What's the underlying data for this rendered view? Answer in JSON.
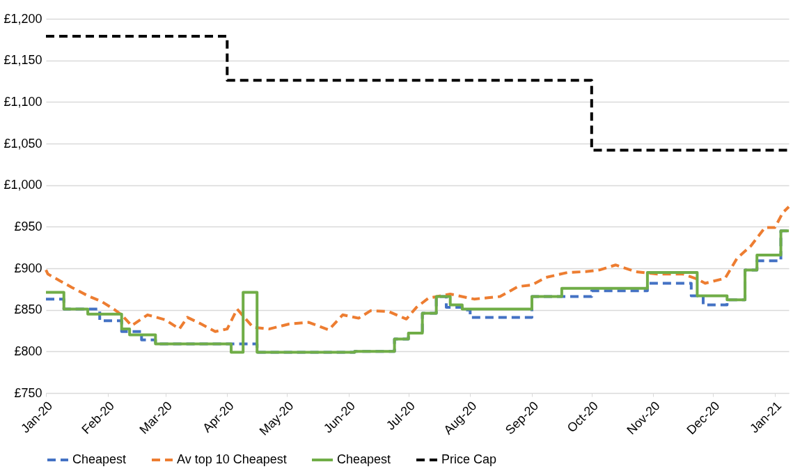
{
  "chart_data": {
    "type": "line",
    "xlim": [
      "2020-01-01",
      "2021-01-08"
    ],
    "xticks": [
      {
        "value": "2020-01-01",
        "label": "Jan-20"
      },
      {
        "value": "2020-02-01",
        "label": "Feb-20"
      },
      {
        "value": "2020-03-01",
        "label": "Mar-20"
      },
      {
        "value": "2020-04-01",
        "label": "Apr-20"
      },
      {
        "value": "2020-05-01",
        "label": "May-20"
      },
      {
        "value": "2020-06-01",
        "label": "Jun-20"
      },
      {
        "value": "2020-07-01",
        "label": "Jul-20"
      },
      {
        "value": "2020-08-01",
        "label": "Aug-20"
      },
      {
        "value": "2020-09-01",
        "label": "Sep-20"
      },
      {
        "value": "2020-10-01",
        "label": "Oct-20"
      },
      {
        "value": "2020-11-01",
        "label": "Nov-20"
      },
      {
        "value": "2020-12-01",
        "label": "Dec-20"
      },
      {
        "value": "2021-01-01",
        "label": "Jan-21"
      }
    ],
    "ylim": [
      750,
      1200
    ],
    "yticks": [
      {
        "value": 750,
        "label": "£750"
      },
      {
        "value": 800,
        "label": "£800"
      },
      {
        "value": 850,
        "label": "£850"
      },
      {
        "value": 900,
        "label": "£900"
      },
      {
        "value": 950,
        "label": "£950"
      },
      {
        "value": 1000,
        "label": "£1,000"
      },
      {
        "value": 1050,
        "label": "£1,050"
      },
      {
        "value": 1100,
        "label": "£1,100"
      },
      {
        "value": 1150,
        "label": "£1,150"
      },
      {
        "value": 1200,
        "label": "£1,200"
      }
    ],
    "grid": "y",
    "legend": "bottom",
    "series": [
      {
        "name": "Cheapest",
        "type": "step",
        "color": "#4472c4",
        "line_style": "dashed",
        "x": [
          "2020-01-01",
          "2020-01-10",
          "2020-01-28",
          "2020-02-08",
          "2020-02-18",
          "2020-02-25",
          "2020-04-16",
          "2020-06-04",
          "2020-06-24",
          "2020-07-01",
          "2020-07-08",
          "2020-07-15",
          "2020-07-20",
          "2020-07-28",
          "2020-08-01",
          "2020-09-01",
          "2020-10-01",
          "2020-10-29",
          "2020-11-20",
          "2020-11-26",
          "2020-12-08",
          "2020-12-17",
          "2020-12-23",
          "2021-01-04",
          "2021-01-08"
        ],
        "values": [
          863,
          851,
          837,
          824,
          814,
          809,
          799,
          800,
          815,
          822,
          846,
          866,
          853,
          850,
          841,
          866,
          873,
          882,
          867,
          856,
          862,
          898,
          909,
          945,
          945
        ]
      },
      {
        "name": "Av top 10 Cheapest",
        "type": "line",
        "color": "#ed7d31",
        "line_style": "dashed",
        "x": [
          "2020-01-01",
          "2020-01-02",
          "2020-01-08",
          "2020-01-14",
          "2020-01-22",
          "2020-01-29",
          "2020-02-04",
          "2020-02-08",
          "2020-02-13",
          "2020-02-21",
          "2020-03-01",
          "2020-03-08",
          "2020-03-12",
          "2020-03-19",
          "2020-03-26",
          "2020-04-01",
          "2020-04-06",
          "2020-04-14",
          "2020-04-22",
          "2020-05-02",
          "2020-05-12",
          "2020-05-22",
          "2020-05-29",
          "2020-06-06",
          "2020-06-12",
          "2020-06-21",
          "2020-06-30",
          "2020-07-05",
          "2020-07-11",
          "2020-07-22",
          "2020-08-03",
          "2020-08-16",
          "2020-08-25",
          "2020-09-01",
          "2020-09-08",
          "2020-09-19",
          "2020-09-28",
          "2020-10-05",
          "2020-10-13",
          "2020-10-23",
          "2020-11-03",
          "2020-11-16",
          "2020-11-23",
          "2020-11-27",
          "2020-12-07",
          "2020-12-13",
          "2020-12-20",
          "2020-12-27",
          "2021-01-01",
          "2021-01-05",
          "2021-01-08"
        ],
        "values": [
          898,
          893,
          885,
          877,
          867,
          860,
          851,
          844,
          831,
          844,
          838,
          827,
          841,
          833,
          824,
          827,
          851,
          829,
          827,
          833,
          835,
          826,
          844,
          840,
          849,
          848,
          839,
          853,
          864,
          869,
          863,
          866,
          878,
          880,
          889,
          895,
          896,
          898,
          904,
          896,
          893,
          893,
          887,
          882,
          888,
          912,
          927,
          949,
          949,
          967,
          974
        ]
      },
      {
        "name": "Cheapest",
        "type": "step",
        "color": "#70ad47",
        "line_style": "solid",
        "x": [
          "2020-01-01",
          "2020-01-10",
          "2020-01-22",
          "2020-02-08",
          "2020-02-12",
          "2020-02-25",
          "2020-04-03",
          "2020-04-09",
          "2020-04-16",
          "2020-06-04",
          "2020-06-24",
          "2020-07-01",
          "2020-07-08",
          "2020-07-15",
          "2020-07-22",
          "2020-07-28",
          "2020-09-01",
          "2020-09-16",
          "2020-10-29",
          "2020-11-23",
          "2020-12-08",
          "2020-12-17",
          "2020-12-23",
          "2021-01-04",
          "2021-01-08"
        ],
        "values": [
          871,
          851,
          845,
          827,
          820,
          809,
          799,
          871,
          799,
          800,
          815,
          822,
          846,
          866,
          856,
          851,
          866,
          876,
          895,
          867,
          862,
          898,
          916,
          945,
          945
        ]
      },
      {
        "name": "Price Cap",
        "type": "step",
        "color": "#000000",
        "line_style": "dashed",
        "x": [
          "2020-01-01",
          "2020-04-01",
          "2020-10-01",
          "2021-01-08"
        ],
        "values": [
          1179,
          1126,
          1042,
          1042
        ]
      }
    ]
  }
}
